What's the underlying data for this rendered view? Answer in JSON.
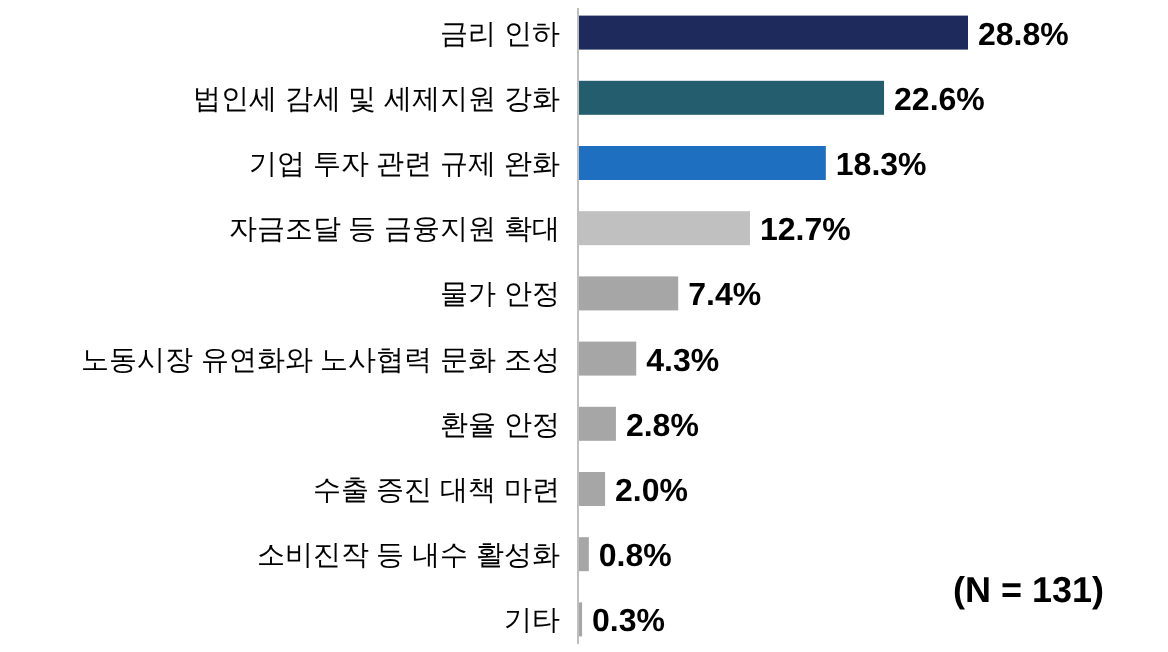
{
  "chart_data": {
    "type": "bar",
    "orientation": "horizontal",
    "categories": [
      "금리 인하",
      "법인세 감세 및 세제지원 강화",
      "기업 투자 관련 규제 완화",
      "자금조달 등 금융지원 확대",
      "물가 안정",
      "노동시장 유연화와 노사협력 문화 조성",
      "환율 안정",
      "수출 증진 대책 마련",
      "소비진작 등 내수 활성화",
      "기타"
    ],
    "values": [
      28.8,
      22.6,
      18.3,
      12.7,
      7.4,
      4.3,
      2.8,
      2.0,
      0.8,
      0.3
    ],
    "value_labels": [
      "28.8%",
      "22.6%",
      "18.3%",
      "12.7%",
      "7.4%",
      "4.3%",
      "2.8%",
      "2.0%",
      "0.8%",
      "0.3%"
    ],
    "colors": [
      "#1f2a5c",
      "#245e6e",
      "#1f6fc0",
      "#c0c0c0",
      "#a6a6a6",
      "#a6a6a6",
      "#a6a6a6",
      "#a6a6a6",
      "#a6a6a6",
      "#a6a6a6"
    ],
    "annotations": [
      "(N = 131)"
    ]
  }
}
